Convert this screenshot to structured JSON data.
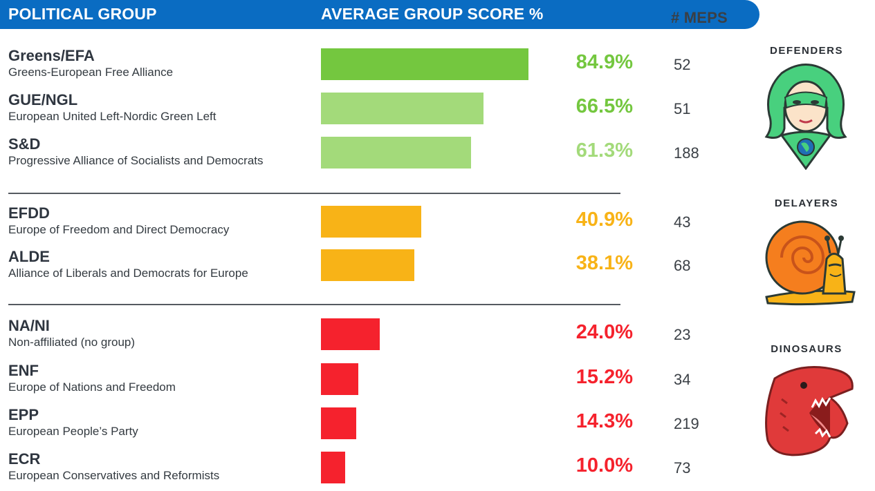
{
  "header": {
    "political_group": "POLITICAL GROUP",
    "average_score": "AVERAGE GROUP SCORE %",
    "meps": "# MEPS"
  },
  "categories": {
    "defenders": "DEFENDERS",
    "delayers": "DELAYERS",
    "dinosaurs": "DINOSAURS"
  },
  "colors": {
    "header": "#0a6cc2",
    "dark_green": "#74c73f",
    "light_green": "#a3da7a",
    "orange": "#f8b317",
    "red": "#f5222d"
  },
  "chart_data": {
    "type": "bar",
    "orientation": "horizontal",
    "xlim": [
      0,
      100
    ],
    "categories": [
      "Greens/EFA",
      "GUE/NGL",
      "S&D",
      "EFDD",
      "ALDE",
      "NA/NI",
      "ENF",
      "EPP",
      "ECR"
    ],
    "values": [
      84.9,
      66.5,
      61.3,
      40.9,
      38.1,
      24.0,
      15.2,
      14.3,
      10.0
    ],
    "rows": [
      {
        "abbr": "Greens/EFA",
        "full": "Greens-European Free Alliance",
        "score": 84.9,
        "score_label": "84.9%",
        "meps": "52",
        "color": "#74c73f",
        "text_color": "#74c73f"
      },
      {
        "abbr": "GUE/NGL",
        "full": "European United Left-Nordic Green Left",
        "score": 66.5,
        "score_label": "66.5%",
        "meps": "51",
        "color": "#a3da7a",
        "text_color": "#74c73f"
      },
      {
        "abbr": "S&D",
        "full": "Progressive Alliance of Socialists and Democrats",
        "score": 61.3,
        "score_label": "61.3%",
        "meps": "188",
        "color": "#a3da7a",
        "text_color": "#a3da7a"
      },
      {
        "abbr": "EFDD",
        "full": "Europe of Freedom and Direct Democracy",
        "score": 40.9,
        "score_label": "40.9%",
        "meps": "43",
        "color": "#f8b317",
        "text_color": "#f8b317"
      },
      {
        "abbr": "ALDE",
        "full": "Alliance of Liberals and Democrats for Europe",
        "score": 38.1,
        "score_label": "38.1%",
        "meps": "68",
        "color": "#f8b317",
        "text_color": "#f8b317"
      },
      {
        "abbr": "NA/NI",
        "full": "Non-affiliated (no group)",
        "score": 24.0,
        "score_label": "24.0%",
        "meps": "23",
        "color": "#f5222d",
        "text_color": "#f5222d"
      },
      {
        "abbr": "ENF",
        "full": "Europe of Nations and Freedom",
        "score": 15.2,
        "score_label": "15.2%",
        "meps": "34",
        "color": "#f5222d",
        "text_color": "#f5222d"
      },
      {
        "abbr": "EPP",
        "full": "European People’s Party",
        "score": 14.3,
        "score_label": "14.3%",
        "meps": "219",
        "color": "#f5222d",
        "text_color": "#f5222d"
      },
      {
        "abbr": "ECR",
        "full": "European Conservatives and Reformists",
        "score": 10.0,
        "score_label": "10.0%",
        "meps": "73",
        "color": "#f5222d",
        "text_color": "#f5222d"
      }
    ]
  }
}
